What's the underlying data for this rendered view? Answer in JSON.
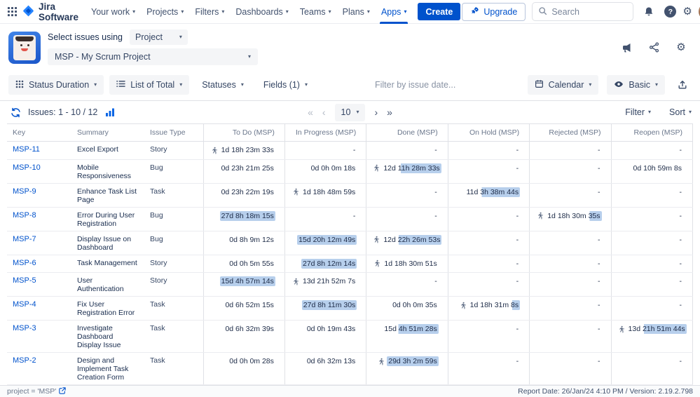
{
  "navbar": {
    "brand": "Jira Software",
    "items": [
      {
        "label": "Your work"
      },
      {
        "label": "Projects"
      },
      {
        "label": "Filters"
      },
      {
        "label": "Dashboards"
      },
      {
        "label": "Teams"
      },
      {
        "label": "Plans"
      },
      {
        "label": "Apps",
        "active": true
      }
    ],
    "create_label": "Create",
    "upgrade_label": "Upgrade",
    "search_placeholder": "Search"
  },
  "app_header": {
    "select_label": "Select issues using",
    "mode_value": "Project",
    "project_value": "MSP - My Scrum Project"
  },
  "toolbar": {
    "report_type": "Status Duration",
    "list_mode": "List of Total",
    "statuses": "Statuses",
    "fields": "Fields (1)",
    "date_placeholder": "Filter by issue date...",
    "calendar": "Calendar",
    "view_mode": "Basic"
  },
  "controls": {
    "issues_label": "Issues: 1 - 10 / 12",
    "page_size": "10",
    "filter_label": "Filter",
    "sort_label": "Sort"
  },
  "icons": {
    "chevron": "▾",
    "page_first": "«",
    "page_prev": "‹",
    "page_next": "›",
    "page_last": "»",
    "help": "?",
    "gear": "⚙"
  },
  "table": {
    "highlight_color": "#b7cfec",
    "columns": [
      "Key",
      "Summary",
      "Issue Type",
      "To Do (MSP)",
      "In Progress (MSP)",
      "Done (MSP)",
      "On Hold (MSP)",
      "Rejected (MSP)",
      "Reopen (MSP)"
    ],
    "rows": [
      {
        "key": "MSP-11",
        "summary": "Excel Export",
        "type": "Story",
        "cells": [
          {
            "text": "1d 18h 23m 33s",
            "runner": true
          },
          {
            "text": "-"
          },
          {
            "text": "-"
          },
          {
            "text": "-"
          },
          {
            "text": "-"
          },
          {
            "text": "-"
          }
        ]
      },
      {
        "key": "MSP-10",
        "summary": "Mobile Responsiveness",
        "type": "Bug",
        "cells": [
          {
            "text": "0d 23h 21m 25s"
          },
          {
            "text": "0d 0h 0m 18s"
          },
          {
            "text": "12d 11h 28m 33s",
            "runner": true,
            "hl": 68
          },
          {
            "text": "-"
          },
          {
            "text": "-"
          },
          {
            "text": "0d 10h 59m 8s"
          }
        ]
      },
      {
        "key": "MSP-9",
        "summary": "Enhance Task List Page",
        "type": "Task",
        "cells": [
          {
            "text": "0d 23h 22m 19s"
          },
          {
            "text": "1d 18h 48m 59s",
            "runner": true
          },
          {
            "text": "-"
          },
          {
            "text": "11d 3h 38m 44s",
            "hl": 70
          },
          {
            "text": "-"
          },
          {
            "text": "-"
          }
        ]
      },
      {
        "key": "MSP-8",
        "summary": "Error During User Registration",
        "type": "Bug",
        "cells": [
          {
            "text": "27d 8h 18m 15s",
            "hl": 100
          },
          {
            "text": "-"
          },
          {
            "text": "-"
          },
          {
            "text": "-"
          },
          {
            "text": "1d 18h 30m 35s",
            "runner": true,
            "hl": 22
          },
          {
            "text": "-"
          }
        ]
      },
      {
        "key": "MSP-7",
        "summary": "Display Issue on Dashboard",
        "type": "Bug",
        "cells": [
          {
            "text": "0d 8h 9m 12s"
          },
          {
            "text": "15d 20h 12m 49s",
            "hl": 100
          },
          {
            "text": "12d 22h 26m 53s",
            "runner": true,
            "hl": 72
          },
          {
            "text": "-"
          },
          {
            "text": "-"
          },
          {
            "text": "-"
          }
        ]
      },
      {
        "key": "MSP-6",
        "summary": "Task Management",
        "type": "Story",
        "cells": [
          {
            "text": "0d 0h 5m 55s"
          },
          {
            "text": "27d 8h 12m 14s",
            "hl": 100
          },
          {
            "text": "1d 18h 30m 51s",
            "runner": true
          },
          {
            "text": "-"
          },
          {
            "text": "-"
          },
          {
            "text": "-"
          }
        ]
      },
      {
        "key": "MSP-5",
        "summary": "User Authentication",
        "type": "Story",
        "cells": [
          {
            "text": "15d 4h 57m 14s",
            "hl": 100
          },
          {
            "text": "13d 21h 52m 7s",
            "runner": true
          },
          {
            "text": "-"
          },
          {
            "text": "-"
          },
          {
            "text": "-"
          },
          {
            "text": "-"
          }
        ]
      },
      {
        "key": "MSP-4",
        "summary": "Fix User Registration Error",
        "type": "Task",
        "cells": [
          {
            "text": "0d 6h 52m 15s"
          },
          {
            "text": "27d 8h 11m 30s",
            "hl": 100
          },
          {
            "text": "0d 0h 0m 35s"
          },
          {
            "text": "1d 18h 31m 8s",
            "runner": true,
            "hl": 15
          },
          {
            "text": "-"
          },
          {
            "text": "-"
          }
        ]
      },
      {
        "key": "MSP-3",
        "summary": "Investigate Dashboard Display Issue",
        "type": "Task",
        "cells": [
          {
            "text": "0d 6h 32m 39s"
          },
          {
            "text": "0d 0h 19m 43s"
          },
          {
            "text": "15d 4h 51m 28s",
            "hl": 72
          },
          {
            "text": "-"
          },
          {
            "text": "-"
          },
          {
            "text": "13d 21h 51m 44s",
            "runner": true,
            "hl": 72
          }
        ]
      },
      {
        "key": "MSP-2",
        "summary": "Design and Implement Task Creation Form",
        "type": "Task",
        "cells": [
          {
            "text": "0d 0h 0m 28s"
          },
          {
            "text": "0d 6h 32m 13s"
          },
          {
            "text": "29d 3h 2m 59s",
            "runner": true,
            "hl": 100
          },
          {
            "text": "-"
          },
          {
            "text": "-"
          },
          {
            "text": "-"
          }
        ]
      }
    ]
  },
  "footer": {
    "left": "project = 'MSP'",
    "right": "Report Date: 26/Jan/24 4:10 PM / Version: 2.19.2.798"
  }
}
